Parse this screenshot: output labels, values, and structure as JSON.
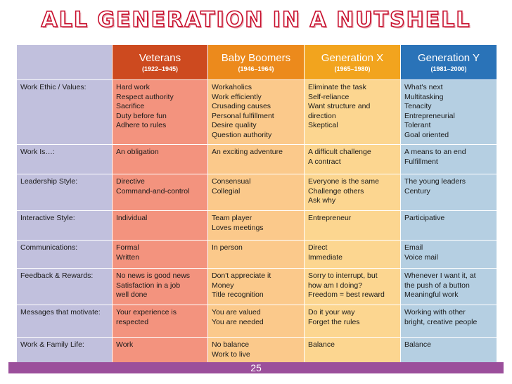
{
  "title": "ALL GENERATION IN A NUTSHELL",
  "slide_number": "25",
  "colors": {
    "title_outline": "#c8102e",
    "veterans_header": "#cd4a1f",
    "boomers_header": "#ec8a1c",
    "genx_header": "#f2a41e",
    "geny_header": "#2a73b8",
    "row_label_bg": "#c1c0dd",
    "footer_bar": "#9b4f9b"
  },
  "headers": [
    {
      "name": "Veterans",
      "years": "(1922–1945)"
    },
    {
      "name": "Baby Boomers",
      "years": "(1946–1964)"
    },
    {
      "name": "Generation X",
      "years": "(1965–1980)"
    },
    {
      "name": "Generation Y",
      "years": "(1981–2000)"
    }
  ],
  "rows": [
    {
      "label": "Work Ethic / Values:",
      "cells": [
        [
          "Hard work",
          "Respect authority",
          "Sacrifice",
          "Duty before fun",
          "Adhere to rules"
        ],
        [
          "Workaholics",
          "Work efficiently",
          "Crusading causes",
          "Personal fulfillment",
          "Desire quality",
          "Question authority"
        ],
        [
          "Eliminate the task",
          "Self-reliance",
          "Want structure and",
          "direction",
          "Skeptical"
        ],
        [
          "What's next",
          "Multitasking",
          "Tenacity",
          "Entrepreneurial",
          "Tolerant",
          "Goal oriented"
        ]
      ]
    },
    {
      "label": "Work Is…:",
      "cells": [
        [
          "An obligation"
        ],
        [
          "An exciting adventure"
        ],
        [
          "A difficult challenge",
          "A contract"
        ],
        [
          "A means to an end",
          "Fulfillment"
        ]
      ]
    },
    {
      "label": "Leadership Style:",
      "cells": [
        [
          "Directive",
          "Command-and-control"
        ],
        [
          "Consensual",
          "Collegial"
        ],
        [
          "Everyone is the same",
          "Challenge others",
          "Ask why"
        ],
        [
          "The young leaders",
          "Century"
        ]
      ]
    },
    {
      "label": "Interactive Style:",
      "cells": [
        [
          "Individual"
        ],
        [
          "Team player",
          "Loves meetings"
        ],
        [
          "Entrepreneur"
        ],
        [
          "Participative"
        ]
      ]
    },
    {
      "label": "Communications:",
      "cells": [
        [
          "Formal",
          "Written"
        ],
        [
          "In person"
        ],
        [
          "Direct",
          "Immediate"
        ],
        [
          "Email",
          "Voice mail"
        ]
      ]
    },
    {
      "label": "Feedback & Rewards:",
      "cells": [
        [
          "No news is good news",
          "Satisfaction in a job",
          "well done"
        ],
        [
          "Don't appreciate it",
          "Money",
          "Title recognition"
        ],
        [
          "Sorry to interrupt, but",
          "how am I doing?",
          "Freedom = best reward"
        ],
        [
          "Whenever I want it, at",
          "the push of a button",
          "Meaningful work"
        ]
      ]
    },
    {
      "label": "Messages that motivate:",
      "cells": [
        [
          "Your experience is",
          "respected"
        ],
        [
          "You are valued",
          "You are needed"
        ],
        [
          "Do it your way",
          "Forget the rules"
        ],
        [
          "Working with other",
          "bright, creative people"
        ]
      ]
    },
    {
      "label": "Work & Family Life:",
      "cells": [
        [
          "Work"
        ],
        [
          "No balance",
          "Work to live"
        ],
        [
          "Balance"
        ],
        [
          "Balance"
        ]
      ]
    }
  ]
}
